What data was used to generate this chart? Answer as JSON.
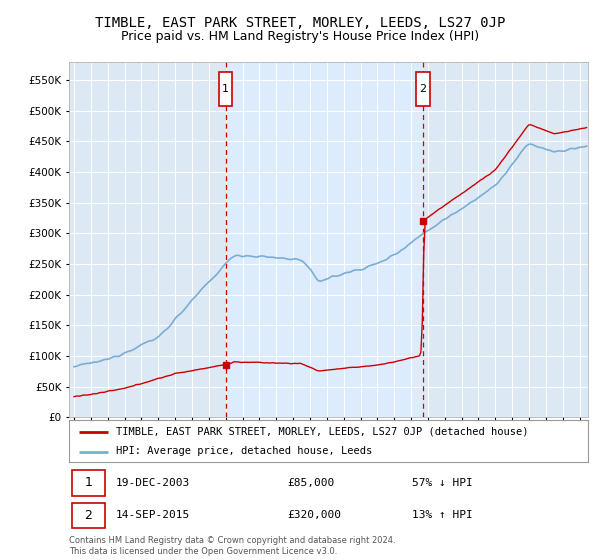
{
  "title": "TIMBLE, EAST PARK STREET, MORLEY, LEEDS, LS27 0JP",
  "subtitle": "Price paid vs. HM Land Registry's House Price Index (HPI)",
  "footer": "Contains HM Land Registry data © Crown copyright and database right 2024.\nThis data is licensed under the Open Government Licence v3.0.",
  "legend_line1": "TIMBLE, EAST PARK STREET, MORLEY, LEEDS, LS27 0JP (detached house)",
  "legend_line2": "HPI: Average price, detached house, Leeds",
  "sale1_date": "19-DEC-2003",
  "sale1_price": "£85,000",
  "sale1_hpi": "57% ↓ HPI",
  "sale2_date": "14-SEP-2015",
  "sale2_price": "£320,000",
  "sale2_hpi": "13% ↑ HPI",
  "sale1_year": 2004.0,
  "sale1_value": 85000,
  "sale2_year": 2015.71,
  "sale2_value": 320000,
  "ylim": [
    0,
    580000
  ],
  "xlim_start": 1994.7,
  "xlim_end": 2025.5,
  "plot_bg_color": "#dde8f5",
  "shaded_region_color": "#ccddf0",
  "red_line_color": "#cc0000",
  "blue_line_color": "#7aadd4",
  "grid_color": "#bbccdd",
  "vline_color": "#cc0000",
  "marker_box_color": "#cc0000",
  "title_fontsize": 10,
  "subtitle_fontsize": 9
}
